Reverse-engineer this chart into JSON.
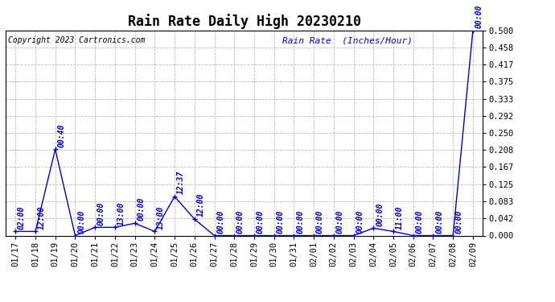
{
  "title": "Rain Rate Daily High 20230210",
  "copyright": "Copyright 2023 Cartronics.com",
  "ylabel": "Rain Rate  (Inches/Hour)",
  "ylabel_color": "#0000cc",
  "line_color": "#0000cc",
  "background_color": "#ffffff",
  "grid_color": "#bbbbbb",
  "ylim": [
    0.0,
    0.5
  ],
  "yticks": [
    0.0,
    0.042,
    0.083,
    0.125,
    0.167,
    0.208,
    0.25,
    0.292,
    0.333,
    0.375,
    0.417,
    0.458,
    0.5
  ],
  "dates": [
    "01/17",
    "01/18",
    "01/19",
    "01/20",
    "01/21",
    "01/22",
    "01/23",
    "01/24",
    "01/25",
    "01/26",
    "01/27",
    "01/28",
    "01/29",
    "01/30",
    "01/31",
    "02/01",
    "02/02",
    "02/03",
    "02/04",
    "02/05",
    "02/06",
    "02/07",
    "02/08",
    "02/09"
  ],
  "values": [
    0.01,
    0.01,
    0.21,
    0.0,
    0.02,
    0.02,
    0.03,
    0.01,
    0.095,
    0.04,
    0.0,
    0.0,
    0.0,
    0.0,
    0.0,
    0.0,
    0.0,
    0.0,
    0.018,
    0.01,
    0.0,
    0.0,
    0.0,
    0.5
  ],
  "time_labels": [
    "02:00",
    "12:00",
    "00:40",
    "00:00",
    "00:00",
    "13:00",
    "00:00",
    "13:00",
    "12:37",
    "12:00",
    "00:00",
    "00:00",
    "00:00",
    "00:00",
    "00:00",
    "00:00",
    "00:00",
    "00:00",
    "00:00",
    "11:00",
    "00:00",
    "00:00",
    "00:00",
    "00:00"
  ],
  "title_fontsize": 12,
  "tick_fontsize": 7.5,
  "label_fontsize": 8,
  "copyright_fontsize": 7,
  "annotation_fontsize": 7
}
